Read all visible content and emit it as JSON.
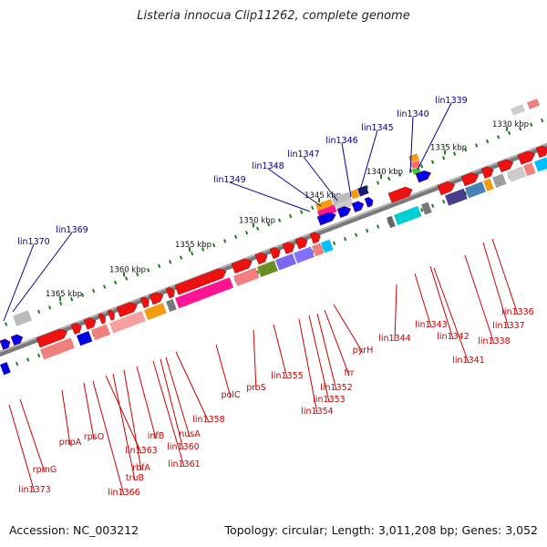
{
  "title": "Listeria innocua Clip11262, complete genome",
  "accession": "Accession: NC_003212",
  "topology": "Topology: circular; Length: 3,011,208 bp; Genes: 3,052",
  "colors": {
    "top_label": "#00008b",
    "bottom_label": "#cc0000",
    "backbone": "#7a7a7a",
    "tick": "#1e7e1e"
  },
  "ruler_ticks": [
    "1330 kbp",
    "1335 kbp",
    "1340 kbp",
    "1345 kbp",
    "1350 kbp",
    "1355 kbp",
    "1360 kbp",
    "1365 kbp"
  ],
  "top_labels": [
    "lin1339",
    "lin1340",
    "lin1345",
    "lin1346",
    "lin1347",
    "lin1348",
    "lin1349",
    "lin1369",
    "lin1370"
  ],
  "bottom_labels": [
    "lin1336",
    "lin1337",
    "lin1338",
    "lin1341",
    "lin1342",
    "lin1343",
    "lin1344",
    "pyrH",
    "frr",
    "lin1352",
    "lin1353",
    "lin1354",
    "lin1355",
    "proS",
    "polC",
    "lin1358",
    "nusA",
    "lin1360",
    "lin1361",
    "infB",
    "rbfA",
    "truB",
    "lin1363",
    "rpsO",
    "lin1366",
    "pnpA",
    "rpmG",
    "lin1373"
  ]
}
